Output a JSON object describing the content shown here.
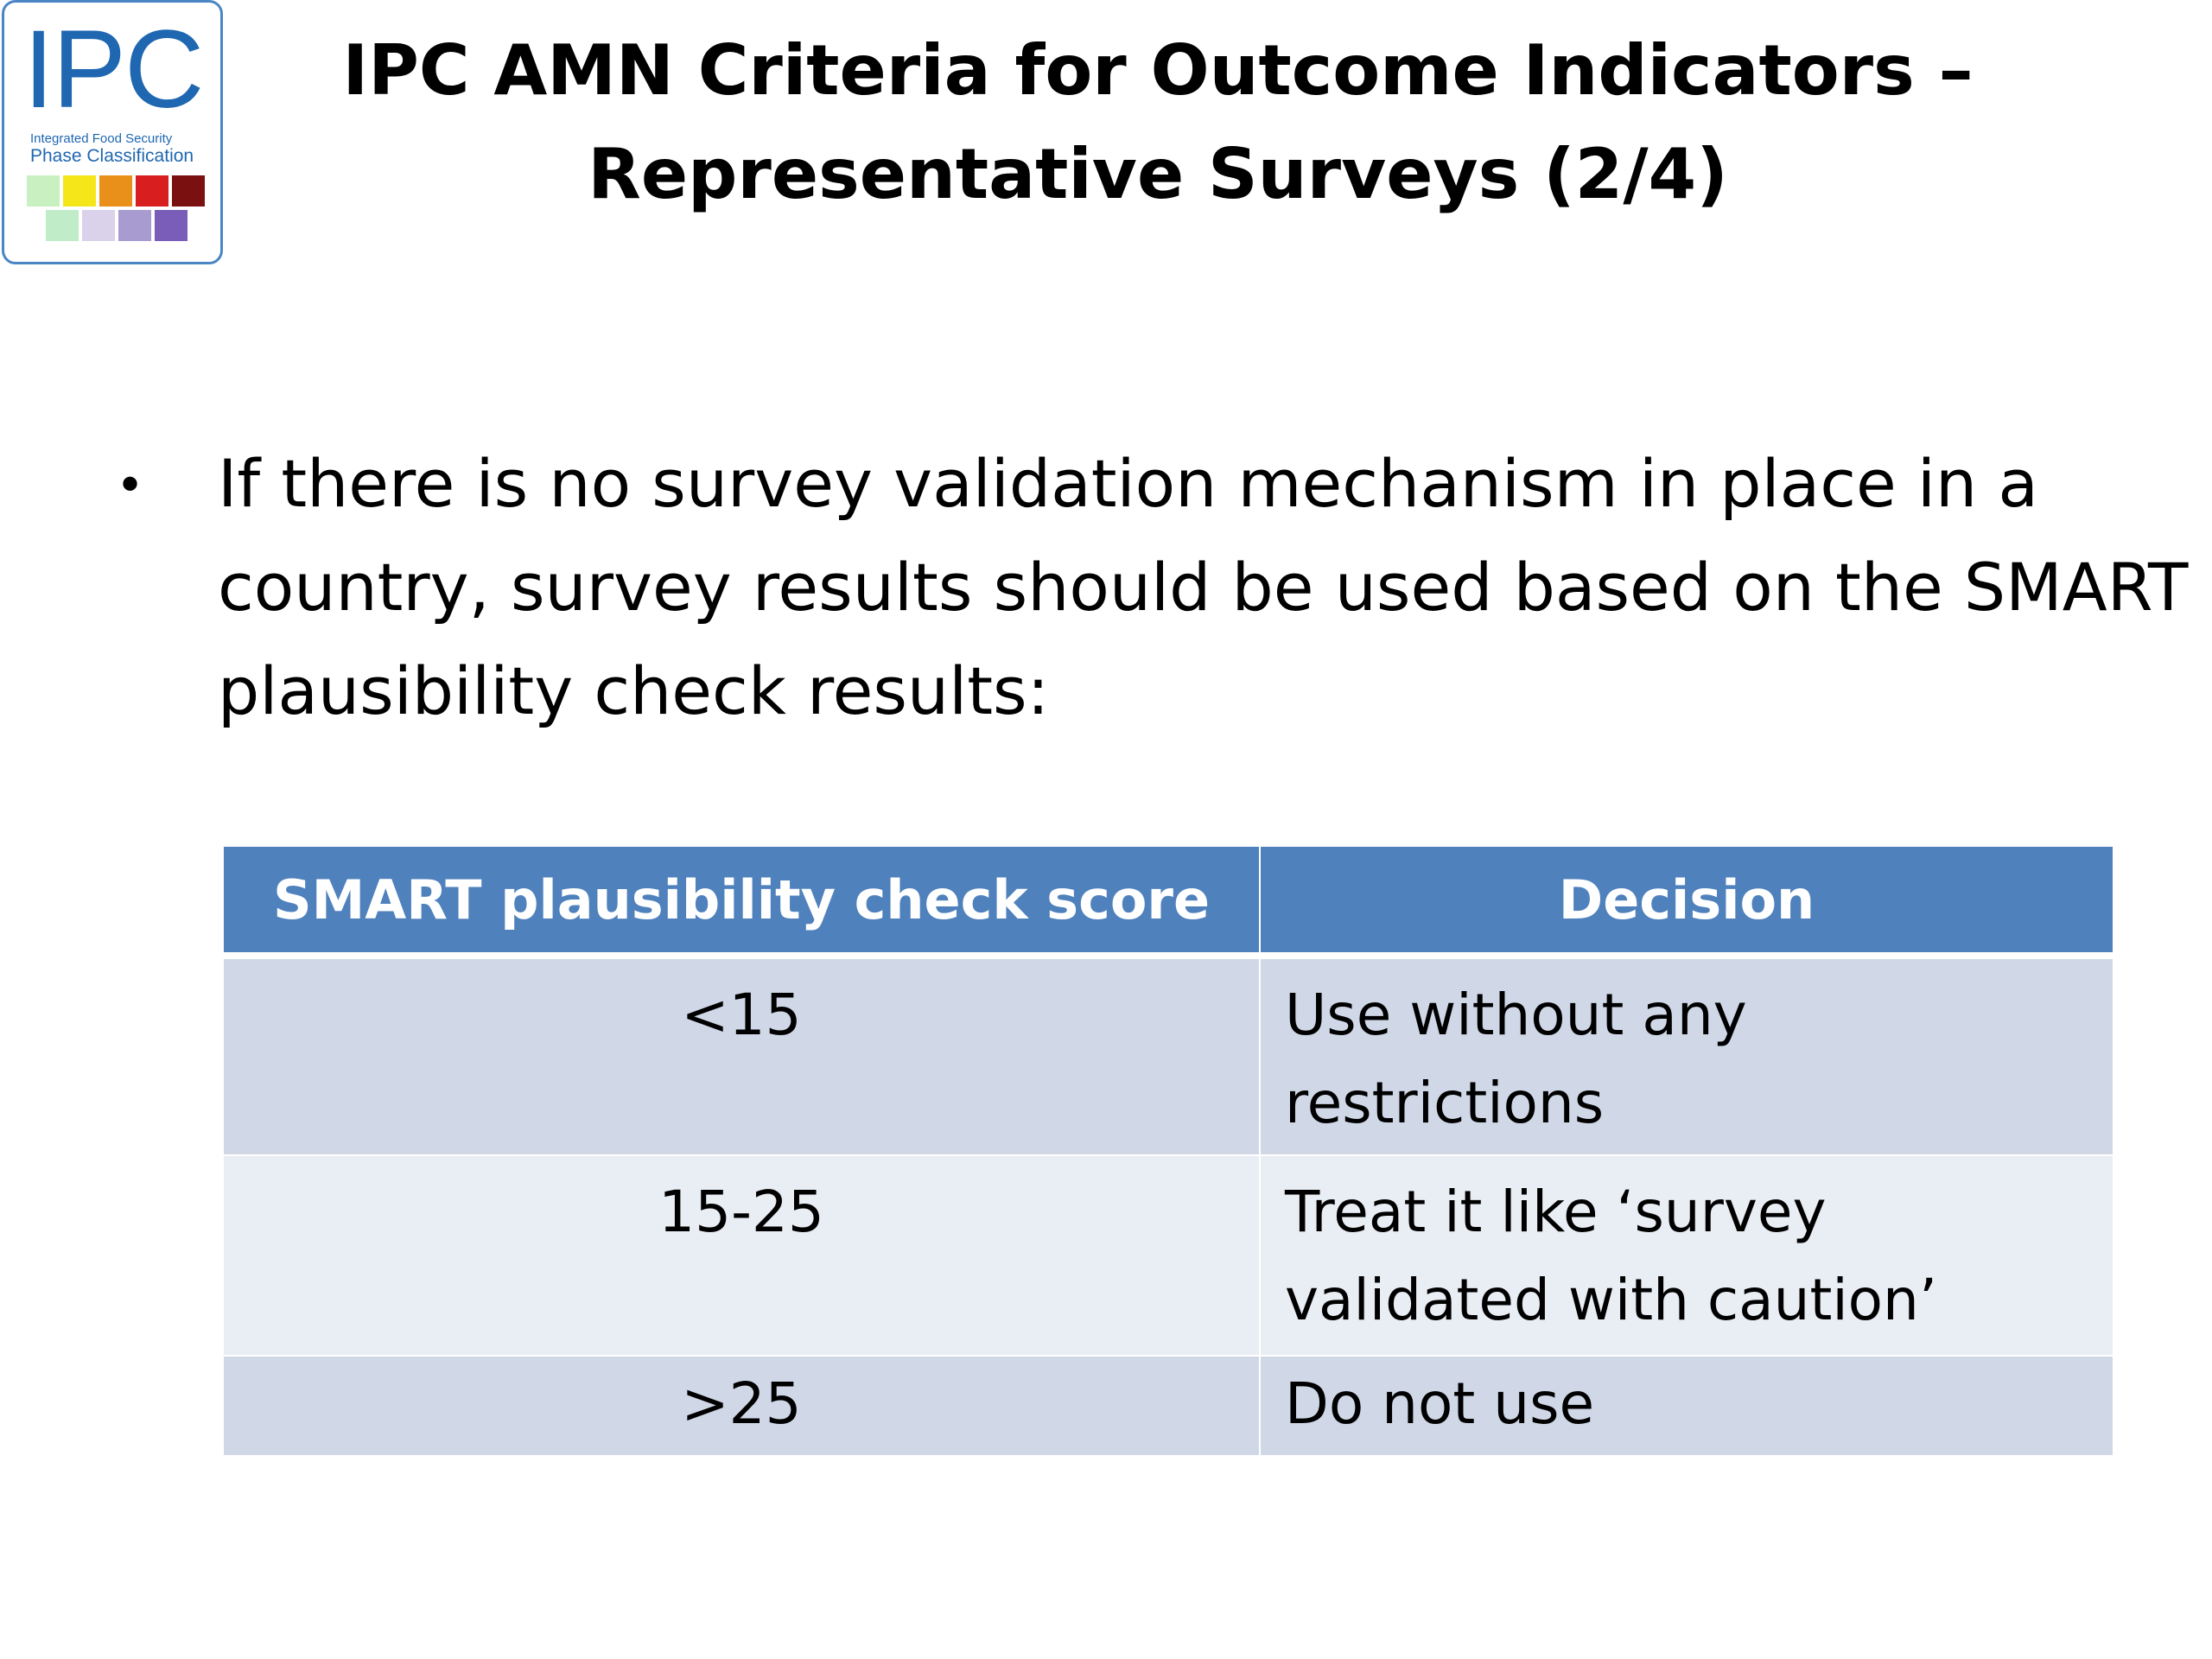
{
  "logo": {
    "mark": "IPC",
    "subtitle_line1": "Integrated Food Security",
    "subtitle_line2": "Phase Classification",
    "swatch_colors_row1": [
      "#c8f0c0",
      "#f5e61a",
      "#e8901a",
      "#d81e1e",
      "#7a1010"
    ],
    "swatch_colors_row2": [
      "#c0ecc8",
      "#d9d2ea",
      "#a79bd0",
      "#7a5db8"
    ]
  },
  "title": {
    "line1": "IPC AMN Criteria for Outcome Indicators –",
    "line2": "Representative Surveys (2/4)"
  },
  "bullet": {
    "marker": "•",
    "text": "If there is no survey validation mechanism in place in a country, survey results should be used based on the SMART plausibility check results:"
  },
  "table": {
    "headers": [
      "SMART plausibility check score",
      "Decision"
    ],
    "rows": [
      {
        "score": "<15",
        "decision_line1": "Use without any",
        "decision_line2": "restrictions"
      },
      {
        "score": "15-25",
        "decision_line1": "Treat it like ‘survey",
        "decision_line2": "validated with caution’"
      },
      {
        "score": ">25",
        "decision_line1": "Do not use",
        "decision_line2": ""
      }
    ],
    "header_color": "#4f81bd",
    "row_color_odd": "#d0d8e8",
    "row_color_even": "#e9edf4"
  }
}
